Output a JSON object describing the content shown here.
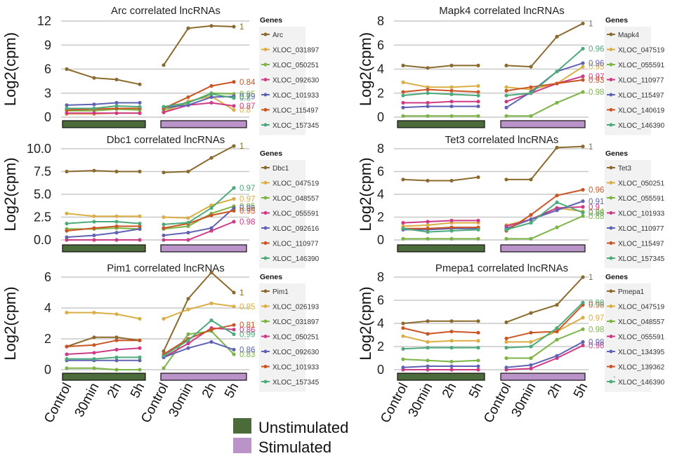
{
  "colors": {
    "unstimulated": "#4c6b3a",
    "stimulated": "#ba93c8",
    "gene_palette": [
      "#8b6a2e",
      "#dbae45",
      "#7cb445",
      "#cf3a86",
      "#6063b3",
      "#c95524",
      "#4daa7a"
    ]
  },
  "xticks": [
    "Control",
    "30min",
    "2h",
    "5h"
  ],
  "group_legend": [
    {
      "label": "Unstimulated",
      "color": "#4c6b3a"
    },
    {
      "label": "Stimulated",
      "color": "#ba93c8"
    }
  ],
  "legend_title": "Genes",
  "ylabel": "Log2(cpm)",
  "corner_marks": [
    "'",
    "'"
  ],
  "chart_data": [
    {
      "type": "line",
      "title": "Arc correlated lncRNAs",
      "ylabel": "Log2(cpm)",
      "ylim": [
        -0.6,
        12.3
      ],
      "yticks": [
        0,
        3,
        6,
        9,
        12
      ],
      "series": [
        {
          "name": "Arc",
          "unstim": [
            6.0,
            4.9,
            4.7,
            4.1
          ],
          "stim": [
            6.5,
            11.1,
            11.4,
            11.3
          ],
          "label": "1"
        },
        {
          "name": "XLOC_031897",
          "unstim": [
            0.4,
            0.4,
            0.5,
            0.5
          ],
          "stim": [
            0.6,
            2.0,
            2.6,
            0.9
          ],
          "label": "0.8"
        },
        {
          "name": "XLOC_050251",
          "unstim": [
            0.8,
            0.8,
            1.0,
            0.9
          ],
          "stim": [
            0.9,
            1.8,
            3.0,
            2.9
          ],
          "label": "0.85"
        },
        {
          "name": "XLOC_092630",
          "unstim": [
            0.5,
            0.5,
            0.5,
            0.5
          ],
          "stim": [
            0.6,
            1.5,
            1.8,
            1.4
          ],
          "label": "0.87"
        },
        {
          "name": "XLOC_101933",
          "unstim": [
            1.5,
            1.6,
            1.8,
            1.8
          ],
          "stim": [
            1.2,
            1.5,
            2.5,
            2.6
          ],
          "label": "0.79"
        },
        {
          "name": "XLOC_115497",
          "unstim": [
            0.9,
            1.0,
            1.1,
            1.1
          ],
          "stim": [
            1.1,
            2.5,
            3.9,
            4.4
          ],
          "label": "0.84"
        },
        {
          "name": "XLOC_157345",
          "unstim": [
            1.1,
            1.1,
            1.4,
            1.3
          ],
          "stim": [
            1.3,
            1.8,
            2.9,
            2.4
          ],
          "label": "0.8"
        }
      ]
    },
    {
      "type": "line",
      "title": "Mapk4 correlated lncRNAs",
      "ylabel": "Log2(cpm)",
      "ylim": [
        -0.3,
        8.2
      ],
      "yticks": [
        0,
        2,
        4,
        6,
        8
      ],
      "series": [
        {
          "name": "Mapk4",
          "unstim": [
            4.3,
            4.1,
            4.3,
            4.3
          ],
          "stim": [
            4.3,
            4.2,
            6.7,
            7.8
          ],
          "label": "1"
        },
        {
          "name": "XLOC_047519",
          "unstim": [
            2.9,
            2.5,
            2.5,
            2.6
          ],
          "stim": [
            2.5,
            2.3,
            2.8,
            4.2
          ],
          "label": "0.95"
        },
        {
          "name": "XLOC_055591",
          "unstim": [
            0.1,
            0.1,
            0.1,
            0.1
          ],
          "stim": [
            0.1,
            0.1,
            1.2,
            2.1
          ],
          "label": "0.98"
        },
        {
          "name": "XLOC_110977",
          "unstim": [
            1.2,
            1.2,
            1.3,
            1.3
          ],
          "stim": [
            1.3,
            2.0,
            2.8,
            3.4
          ],
          "label": "0.97"
        },
        {
          "name": "XLOC_115497",
          "unstim": [
            0.8,
            0.9,
            0.9,
            0.9
          ],
          "stim": [
            0.8,
            2.1,
            3.8,
            4.5
          ],
          "label": "0.96"
        },
        {
          "name": "XLOC_140619",
          "unstim": [
            2.1,
            2.3,
            2.2,
            2.1
          ],
          "stim": [
            2.2,
            2.5,
            2.8,
            3.1
          ],
          "label": "0.93"
        },
        {
          "name": "XLOC_146390",
          "unstim": [
            1.8,
            2.0,
            1.9,
            1.8
          ],
          "stim": [
            1.8,
            2.0,
            3.8,
            5.7
          ],
          "label": "0.96"
        }
      ]
    },
    {
      "type": "line",
      "title": "Dbc1 correlated lncRNAs",
      "ylabel": "Log2(cpm)",
      "ylim": [
        -0.3,
        10.6
      ],
      "yticks": [
        0.0,
        2.5,
        5.0,
        7.5,
        10.0
      ],
      "yticklabels": [
        "0.0",
        "2.5",
        "5.0",
        "7.5",
        "10.0"
      ],
      "series": [
        {
          "name": "Dbc1",
          "unstim": [
            7.5,
            7.6,
            7.5,
            7.5
          ],
          "stim": [
            7.4,
            7.5,
            9.0,
            10.3
          ],
          "label": "1"
        },
        {
          "name": "XLOC_047519",
          "unstim": [
            2.9,
            2.6,
            2.6,
            2.6
          ],
          "stim": [
            2.5,
            2.4,
            3.8,
            4.5
          ],
          "label": "0.97"
        },
        {
          "name": "XLOC_048557",
          "unstim": [
            1.2,
            1.2,
            1.3,
            1.2
          ],
          "stim": [
            1.2,
            1.5,
            2.9,
            3.7
          ],
          "label": "0.95"
        },
        {
          "name": "XLOC_055591",
          "unstim": [
            0.0,
            0.0,
            0.0,
            0.0
          ],
          "stim": [
            0.0,
            0.0,
            1.0,
            2.0
          ],
          "label": "0.98"
        },
        {
          "name": "XLOC_092616",
          "unstim": [
            0.3,
            0.5,
            0.8,
            1.2
          ],
          "stim": [
            0.5,
            0.8,
            1.3,
            3.5
          ],
          "label": "0.96"
        },
        {
          "name": "XLOC_110977",
          "unstim": [
            1.0,
            1.3,
            1.5,
            1.5
          ],
          "stim": [
            1.3,
            1.8,
            2.7,
            3.2
          ],
          "label": "0.95"
        },
        {
          "name": "XLOC_146390",
          "unstim": [
            1.8,
            2.0,
            2.0,
            1.8
          ],
          "stim": [
            1.7,
            1.9,
            3.5,
            5.7
          ],
          "label": "0.97"
        }
      ]
    },
    {
      "type": "line",
      "title": "Tet3 correlated lncRNAs",
      "ylabel": "Log2(cpm)",
      "ylim": [
        -0.3,
        8.4
      ],
      "yticks": [
        0,
        2,
        4,
        6,
        8
      ],
      "series": [
        {
          "name": "Tet3",
          "unstim": [
            5.3,
            5.2,
            5.2,
            5.5
          ],
          "stim": [
            5.3,
            5.3,
            8.1,
            8.2
          ],
          "label": "1"
        },
        {
          "name": "XLOC_050251",
          "unstim": [
            1.2,
            1.3,
            1.5,
            1.5
          ],
          "stim": [
            1.3,
            1.8,
            2.8,
            2.5
          ],
          "label": "0.94"
        },
        {
          "name": "XLOC_055591",
          "unstim": [
            0.1,
            0.1,
            0.1,
            0.1
          ],
          "stim": [
            0.1,
            0.1,
            1.1,
            2.1
          ],
          "label": "0.88"
        },
        {
          "name": "XLOC_101933",
          "unstim": [
            1.5,
            1.6,
            1.7,
            1.7
          ],
          "stim": [
            1.2,
            1.8,
            2.8,
            2.9
          ],
          "label": "0.9"
        },
        {
          "name": "XLOC_110977",
          "unstim": [
            0.9,
            0.9,
            1.0,
            1.0
          ],
          "stim": [
            1.0,
            1.8,
            2.6,
            3.4
          ],
          "label": "0.91"
        },
        {
          "name": "XLOC_115497",
          "unstim": [
            1.0,
            1.0,
            1.1,
            1.1
          ],
          "stim": [
            0.8,
            2.2,
            3.9,
            4.4
          ],
          "label": "0.96"
        },
        {
          "name": "XLOC_157345",
          "unstim": [
            1.0,
            0.7,
            0.8,
            0.9
          ],
          "stim": [
            0.9,
            1.5,
            3.3,
            2.4
          ],
          "label": "0.88"
        }
      ]
    },
    {
      "type": "line",
      "title": "Pim1 correlated lncRNAs",
      "ylabel": "Log2(cpm)",
      "ylim": [
        -0.4,
        6.8
      ],
      "yticks": [
        0,
        2,
        4,
        6
      ],
      "series": [
        {
          "name": "Pim1",
          "unstim": [
            1.5,
            2.1,
            2.1,
            1.9
          ],
          "stim": [
            1.2,
            4.6,
            6.3,
            5.0
          ],
          "label": "1"
        },
        {
          "name": "XLOC_026193",
          "unstim": [
            3.7,
            3.7,
            3.6,
            3.3
          ],
          "stim": [
            3.3,
            3.9,
            4.3,
            4.1
          ],
          "label": "0.85"
        },
        {
          "name": "XLOC_031897",
          "unstim": [
            0.1,
            0.1,
            0.0,
            0.0
          ],
          "stim": [
            0.1,
            2.3,
            2.5,
            1.0
          ],
          "label": "0.83"
        },
        {
          "name": "XLOC_050251",
          "unstim": [
            1.0,
            1.1,
            1.3,
            1.4
          ],
          "stim": [
            0.8,
            1.7,
            2.7,
            2.6
          ],
          "label": "0.86"
        },
        {
          "name": "XLOC_092630",
          "unstim": [
            0.6,
            0.6,
            0.6,
            0.6
          ],
          "stim": [
            0.8,
            1.4,
            1.8,
            1.3
          ],
          "label": "0.86"
        },
        {
          "name": "XLOC_101933",
          "unstim": [
            1.5,
            1.6,
            1.9,
            1.9
          ],
          "stim": [
            1.0,
            2.0,
            2.6,
            2.9
          ],
          "label": "0.81"
        },
        {
          "name": "XLOC_157345",
          "unstim": [
            0.7,
            0.7,
            0.8,
            0.8
          ],
          "stim": [
            0.9,
            1.9,
            3.2,
            2.3
          ],
          "label": "0.99"
        }
      ]
    },
    {
      "type": "line",
      "title": "Pmepa1 correlated lncRNAs",
      "ylabel": "Log2(cpm)",
      "ylim": [
        -0.3,
        8.2
      ],
      "yticks": [
        0,
        2,
        4,
        6,
        8
      ],
      "series": [
        {
          "name": "Pmepa1",
          "unstim": [
            4.0,
            4.2,
            4.2,
            4.2
          ],
          "stim": [
            4.1,
            4.9,
            5.6,
            8.0
          ],
          "label": "1"
        },
        {
          "name": "XLOC_047519",
          "unstim": [
            2.9,
            2.4,
            2.5,
            2.5
          ],
          "stim": [
            2.4,
            2.4,
            3.3,
            4.5
          ],
          "label": "0.97"
        },
        {
          "name": "XLOC_048557",
          "unstim": [
            0.9,
            0.8,
            0.7,
            0.8
          ],
          "stim": [
            1.0,
            1.0,
            2.6,
            3.5
          ],
          "label": "0.98"
        },
        {
          "name": "XLOC_055591",
          "unstim": [
            0.0,
            0.0,
            0.0,
            0.0
          ],
          "stim": [
            0.0,
            0.1,
            1.0,
            2.1
          ],
          "label": "0.96"
        },
        {
          "name": "XLOC_134395",
          "unstim": [
            0.2,
            0.3,
            0.3,
            0.3
          ],
          "stim": [
            0.2,
            0.4,
            1.2,
            2.4
          ],
          "label": "0.98"
        },
        {
          "name": "XLOC_139362",
          "unstim": [
            3.6,
            3.1,
            3.3,
            3.2
          ],
          "stim": [
            2.7,
            3.2,
            3.3,
            5.6
          ],
          "label": "0.98"
        },
        {
          "name": "XLOC_146390",
          "unstim": [
            1.8,
            1.9,
            1.9,
            1.9
          ],
          "stim": [
            1.9,
            2.0,
            3.6,
            5.8
          ],
          "label": "0.98"
        }
      ]
    }
  ]
}
